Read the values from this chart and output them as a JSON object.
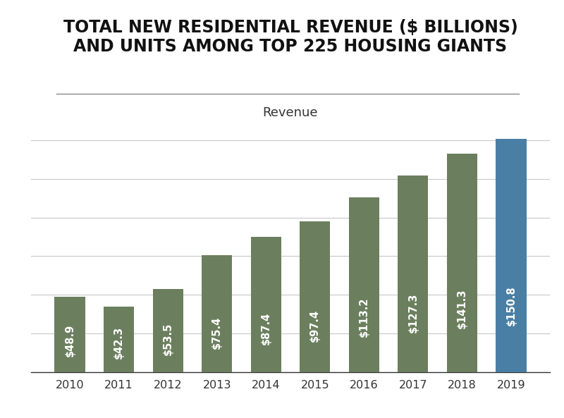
{
  "title_line1": "TOTAL NEW RESIDENTIAL REVENUE ($ BILLIONS)",
  "title_line2": "AND UNITS AMONG TOP 225 HOUSING GIANTS",
  "subtitle": "Revenue",
  "years": [
    "2010",
    "2011",
    "2012",
    "2013",
    "2014",
    "2015",
    "2016",
    "2017",
    "2018",
    "2019"
  ],
  "values": [
    48.9,
    42.3,
    53.5,
    75.4,
    87.4,
    97.4,
    113.2,
    127.3,
    141.3,
    150.8
  ],
  "labels": [
    "$48.9",
    "$42.3",
    "$53.5",
    "$75.4",
    "$87.4",
    "$97.4",
    "$113.2",
    "$127.3",
    "$141.3",
    "$150.8"
  ],
  "bar_colors": [
    "#6b7f5e",
    "#6b7f5e",
    "#6b7f5e",
    "#6b7f5e",
    "#6b7f5e",
    "#6b7f5e",
    "#6b7f5e",
    "#6b7f5e",
    "#6b7f5e",
    "#4a7fa5"
  ],
  "background_color": "#ffffff",
  "ylim_max": 165,
  "grid_color": "#c8c8c8",
  "label_color": "#ffffff",
  "label_fontsize": 10.5,
  "title_fontsize": 17,
  "subtitle_fontsize": 13,
  "xtick_fontsize": 11.5,
  "bar_width": 0.62,
  "grid_yticks": [
    0,
    25,
    50,
    75,
    100,
    125,
    150
  ],
  "separator_color": "#888888",
  "spine_color": "#333333"
}
